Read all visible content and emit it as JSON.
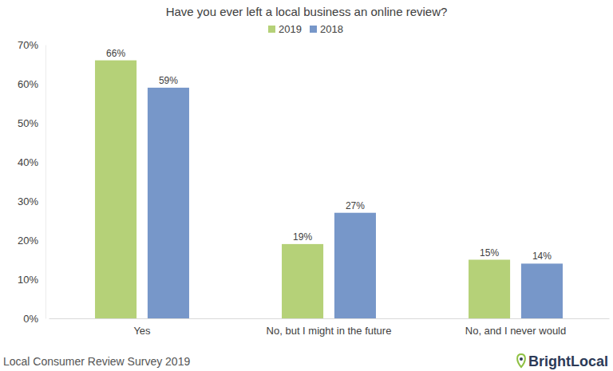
{
  "chart_data": {
    "type": "bar",
    "title": "Have you ever left a local business an online review?",
    "categories": [
      "Yes",
      "No, but I might in the future",
      "No, and I never would"
    ],
    "series": [
      {
        "name": "2019",
        "color": "#b5d178",
        "values": [
          66,
          19,
          15
        ],
        "value_labels": [
          "66%",
          "19%",
          "15%"
        ]
      },
      {
        "name": "2018",
        "color": "#7797c9",
        "values": [
          59,
          27,
          14
        ],
        "value_labels": [
          "59%",
          "27%",
          "14%"
        ]
      }
    ],
    "ylim": [
      0,
      70
    ],
    "yticks": [
      {
        "value": 0,
        "label": "0%"
      },
      {
        "value": 10,
        "label": "10%"
      },
      {
        "value": 20,
        "label": "20%"
      },
      {
        "value": 30,
        "label": "30%"
      },
      {
        "value": 40,
        "label": "40%"
      },
      {
        "value": 50,
        "label": "50%"
      },
      {
        "value": 60,
        "label": "60%"
      },
      {
        "value": 70,
        "label": "70%"
      }
    ],
    "grid": false,
    "legend": "top",
    "data_labels": true,
    "annotations": [
      "Local Consumer Review Survey 2019",
      "BrightLocal"
    ]
  }
}
